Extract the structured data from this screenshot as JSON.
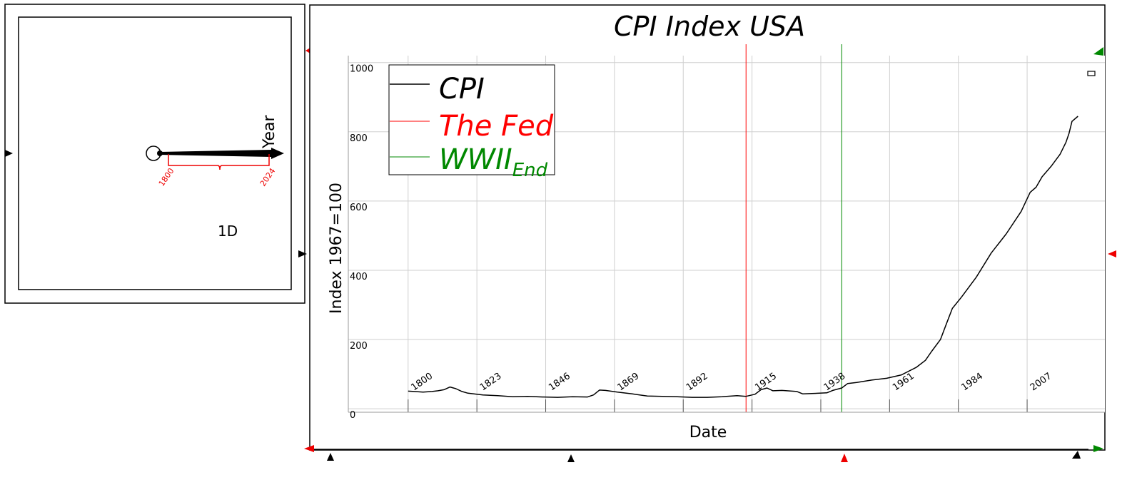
{
  "left_panel": {
    "axis_name": "Year",
    "dimension_label": "1D",
    "range_start": "1800",
    "range_end": "2024"
  },
  "chart_data": {
    "type": "line",
    "title": "CPI Index USA",
    "xlabel": "Date",
    "ylabel": "Index 1967=100",
    "x_tick_labels": [
      "1800",
      "1823",
      "1846",
      "1869",
      "1892",
      "1915",
      "1938",
      "1961",
      "1984",
      "2007"
    ],
    "y_tick_labels": [
      "0",
      "200",
      "400",
      "600",
      "800",
      "1000"
    ],
    "xlim": [
      1780,
      2033
    ],
    "ylim": [
      -10,
      1020
    ],
    "grid": true,
    "legend_placement": "top-left",
    "legend": [
      {
        "label": "CPI",
        "color": "#000000"
      },
      {
        "label": "The Fed",
        "color": "#ff0000"
      },
      {
        "label": "WWII",
        "sub": "End",
        "color": "#008800"
      }
    ],
    "vertical_markers": [
      {
        "x": 1913,
        "color": "#ff0000"
      },
      {
        "x": 1945,
        "color": "#008800"
      }
    ],
    "series": [
      {
        "color": "#000000",
        "x": [
          1800,
          1802,
          1805,
          1808,
          1810,
          1812,
          1814,
          1816,
          1818,
          1820,
          1825,
          1830,
          1835,
          1840,
          1845,
          1850,
          1855,
          1860,
          1862,
          1864,
          1866,
          1870,
          1875,
          1880,
          1885,
          1890,
          1895,
          1900,
          1905,
          1910,
          1913,
          1916,
          1918,
          1920,
          1922,
          1925,
          1930,
          1932,
          1935,
          1940,
          1942,
          1945,
          1947,
          1950,
          1955,
          1960,
          1965,
          1970,
          1973,
          1975,
          1978,
          1980,
          1982,
          1985,
          1990,
          1995,
          2000,
          2005,
          2008,
          2010,
          2012,
          2015,
          2018,
          2020,
          2021,
          2022,
          2024
        ],
        "y": [
          51,
          50,
          48,
          50,
          52,
          55,
          63,
          58,
          50,
          45,
          40,
          38,
          35,
          36,
          34,
          33,
          35,
          34,
          40,
          54,
          53,
          48,
          43,
          37,
          36,
          35,
          33,
          33,
          35,
          38,
          36,
          42,
          55,
          60,
          52,
          53,
          50,
          43,
          44,
          46,
          53,
          60,
          73,
          76,
          83,
          88,
          98,
          120,
          140,
          165,
          200,
          245,
          290,
          322,
          380,
          450,
          505,
          570,
          625,
          640,
          670,
          700,
          735,
          770,
          795,
          830,
          845
        ]
      }
    ]
  }
}
